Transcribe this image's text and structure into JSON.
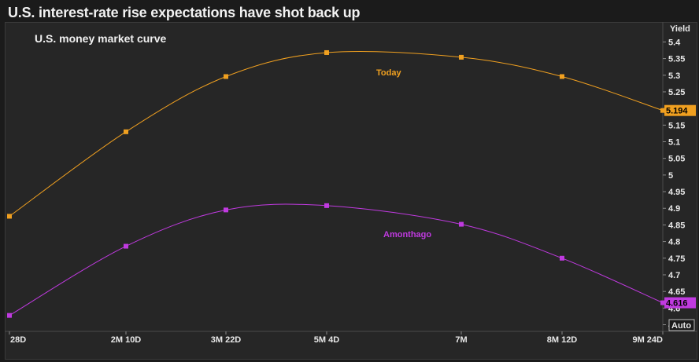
{
  "title": "U.S. interest-rate rise expectations have shot back up",
  "chart_data": {
    "type": "line",
    "subtitle": "U.S. money market curve",
    "ylabel": "Yield",
    "categories": [
      "28D",
      "2M 10D",
      "3M 22D",
      "5M 4D",
      "7M",
      "8M 12D",
      "9M 24D"
    ],
    "ylim": [
      4.53,
      5.46
    ],
    "yticks": [
      "5.4",
      "5.35",
      "5.3",
      "5.25",
      "5.2",
      "5.15",
      "5.1",
      "5.05",
      "5",
      "4.95",
      "4.9",
      "4.85",
      "4.8",
      "4.75",
      "4.7",
      "4.65",
      "4.6",
      "4.55"
    ],
    "grid": false,
    "series": [
      {
        "name": "Today",
        "color": "#f0a020",
        "values": [
          4.876,
          5.13,
          5.296,
          5.368,
          5.354,
          5.296,
          5.194
        ],
        "last_label": "5.194"
      },
      {
        "name": "A month ago",
        "label_text": "Amonthago",
        "color": "#c03ae0",
        "values": [
          4.578,
          4.786,
          4.895,
          4.908,
          4.852,
          4.75,
          4.616
        ],
        "last_label": "4.616"
      }
    ],
    "auto_label": "Auto"
  }
}
